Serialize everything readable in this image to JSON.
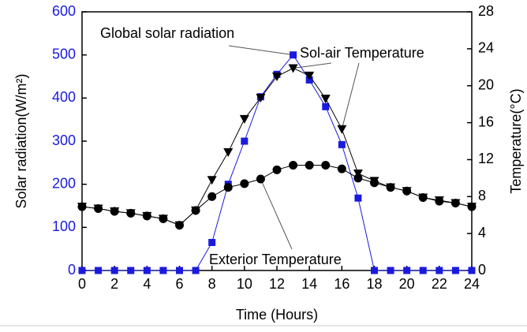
{
  "chart_data": {
    "type": "line",
    "x_label": "Time (Hours)",
    "y_label": "Solar radiation(W/m²)",
    "y2_label": "Temperature(°C)",
    "x": [
      0,
      1,
      2,
      3,
      4,
      5,
      6,
      7,
      8,
      9,
      10,
      11,
      12,
      13,
      14,
      15,
      16,
      17,
      18,
      19,
      20,
      21,
      22,
      23,
      24
    ],
    "xlim": [
      0,
      24
    ],
    "xticks": [
      0,
      2,
      4,
      6,
      8,
      10,
      12,
      14,
      16,
      18,
      20,
      22,
      24
    ],
    "ylim": [
      0,
      600
    ],
    "yticks": [
      0,
      100,
      200,
      300,
      400,
      500,
      600
    ],
    "y2lim": [
      0,
      28
    ],
    "y2ticks": [
      0,
      4,
      8,
      12,
      16,
      20,
      24,
      28
    ],
    "series": [
      {
        "name": "Global solar radiation",
        "color": "#1a1adf",
        "marker": "square",
        "values": [
          0,
          0,
          0,
          0,
          0,
          0,
          0,
          0,
          65,
          200,
          300,
          403,
          455,
          500,
          442,
          380,
          292,
          168,
          0,
          0,
          0,
          0,
          0,
          0,
          0
        ]
      },
      {
        "name": "Sol-air Temperature",
        "color": "#000000",
        "marker": "triangle-down",
        "axis": "y2",
        "values": [
          6.9,
          6.7,
          6.4,
          6.2,
          5.9,
          5.6,
          4.9,
          6.5,
          9.8,
          12.8,
          16.4,
          18.7,
          21.0,
          21.9,
          21.1,
          18.6,
          15.3,
          10.5,
          9.7,
          9.0,
          8.6,
          7.9,
          7.6,
          7.3,
          6.9
        ]
      },
      {
        "name": "Exterior Temperature",
        "color": "#000000",
        "marker": "circle",
        "axis": "y2",
        "values": [
          6.9,
          6.7,
          6.4,
          6.2,
          5.9,
          5.6,
          4.9,
          6.5,
          8.0,
          9.0,
          9.4,
          9.9,
          10.9,
          11.4,
          11.4,
          11.4,
          11.0,
          10.0,
          9.5,
          9.0,
          8.6,
          7.9,
          7.5,
          7.3,
          6.9
        ]
      }
    ]
  }
}
